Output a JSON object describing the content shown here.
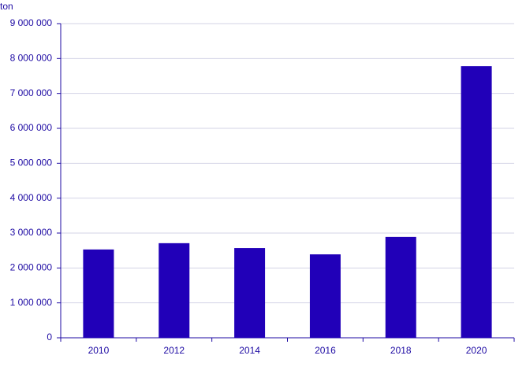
{
  "chart_data": {
    "type": "bar",
    "y_label": "ton",
    "categories": [
      "2010",
      "2012",
      "2014",
      "2016",
      "2018",
      "2020"
    ],
    "values": [
      2530000,
      2710000,
      2570000,
      2390000,
      2890000,
      7780000
    ],
    "color": "#2100b8",
    "ylim": [
      0,
      9000000
    ],
    "yticks": [
      0,
      {
        "value": 1000000,
        "label": "1 000 000"
      },
      {
        "value": 2000000,
        "label": "2 000 000"
      },
      {
        "value": 3000000,
        "label": "3 000 000"
      },
      {
        "value": 4000000,
        "label": "4 000 000"
      },
      {
        "value": 5000000,
        "label": "5 000 000"
      },
      {
        "value": 6000000,
        "label": "6 000 000"
      },
      {
        "value": 7000000,
        "label": "7 000 000"
      },
      {
        "value": 8000000,
        "label": "8 000 000"
      },
      {
        "value": 9000000,
        "label": "9 000 000"
      }
    ],
    "grid": true
  }
}
